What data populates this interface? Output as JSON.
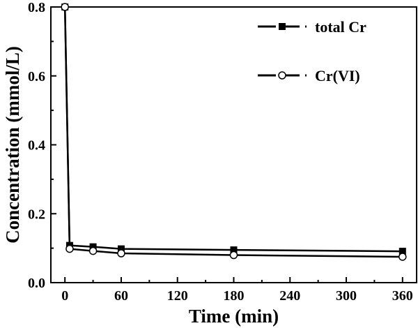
{
  "chart_data": {
    "type": "line",
    "xlabel": "Time (min)",
    "ylabel": "Concentration (mmol/L)",
    "xlim": [
      -15,
      375
    ],
    "ylim": [
      0,
      0.8
    ],
    "x_ticks": [
      0,
      60,
      120,
      180,
      240,
      300,
      360
    ],
    "x_tick_labels": [
      "0",
      "60",
      "120",
      "180",
      "240",
      "300",
      "360"
    ],
    "y_ticks": [
      0,
      0.2,
      0.4,
      0.6,
      0.8
    ],
    "y_tick_labels": [
      "0.0",
      "0.2",
      "0.4",
      "0.6",
      "0.8"
    ],
    "legend_position": "top-right",
    "grid": false,
    "series": [
      {
        "name": "total Cr",
        "marker": "filled-square",
        "color": "#000000",
        "x": [
          0,
          5,
          30,
          60,
          180,
          360
        ],
        "y": [
          0.8,
          0.108,
          0.104,
          0.098,
          0.095,
          0.091
        ]
      },
      {
        "name": "Cr(VI)",
        "marker": "open-circle",
        "color": "#000000",
        "x": [
          0,
          5,
          30,
          60,
          180,
          360
        ],
        "y": [
          0.8,
          0.098,
          0.092,
          0.085,
          0.08,
          0.075
        ]
      }
    ]
  }
}
